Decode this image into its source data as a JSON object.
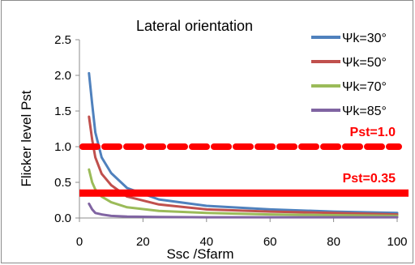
{
  "chart_data": {
    "type": "line",
    "title": "Lateral orientation",
    "xlabel": "Ssc /Sfarm",
    "ylabel": "Flicker level Pst",
    "xlim": [
      0,
      100
    ],
    "ylim": [
      0,
      2.5
    ],
    "x_ticks": [
      "0",
      "20",
      "40",
      "60",
      "80",
      "100"
    ],
    "y_ticks": [
      "0.0",
      "0.5",
      "1.0",
      "1.5",
      "2.0",
      "2.5"
    ],
    "x_tick_values": [
      0,
      20,
      40,
      60,
      80,
      100
    ],
    "y_tick_values": [
      0,
      0.5,
      1.0,
      1.5,
      2.0,
      2.5
    ],
    "grid": false,
    "legend_position": "top-right",
    "series": [
      {
        "name": "Ψk=30°",
        "color": "#4f81bd",
        "x": [
          3,
          4,
          5,
          7,
          10,
          15,
          25,
          40,
          60,
          80,
          100
        ],
        "y": [
          2.03,
          1.6,
          1.2,
          0.85,
          0.63,
          0.42,
          0.26,
          0.17,
          0.12,
          0.09,
          0.07
        ]
      },
      {
        "name": "Ψk=50°",
        "color": "#c0504d",
        "x": [
          3,
          4,
          5,
          7,
          10,
          15,
          25,
          40,
          60,
          80,
          100
        ],
        "y": [
          1.42,
          1.1,
          0.85,
          0.62,
          0.46,
          0.3,
          0.19,
          0.12,
          0.09,
          0.07,
          0.05
        ]
      },
      {
        "name": "Ψk=70°",
        "color": "#9bbb59",
        "x": [
          3,
          4,
          5,
          7,
          10,
          15,
          25,
          40,
          60,
          80,
          100
        ],
        "y": [
          0.68,
          0.5,
          0.4,
          0.3,
          0.22,
          0.15,
          0.1,
          0.07,
          0.05,
          0.04,
          0.03
        ]
      },
      {
        "name": "Ψk=85°",
        "color": "#8064a2",
        "x": [
          3,
          4,
          5,
          7,
          10,
          15,
          25,
          40,
          60,
          80,
          100
        ],
        "y": [
          0.2,
          0.12,
          0.07,
          0.05,
          0.03,
          0.02,
          0.015,
          0.01,
          0.01,
          0.01,
          0.01
        ]
      }
    ],
    "reference_lines": [
      {
        "label": "Pst=1.0",
        "y": 1.0,
        "color": "#ff0000",
        "style": "dashed"
      },
      {
        "label": "Pst=0.35",
        "y": 0.35,
        "color": "#ff0000",
        "style": "solid"
      }
    ]
  }
}
